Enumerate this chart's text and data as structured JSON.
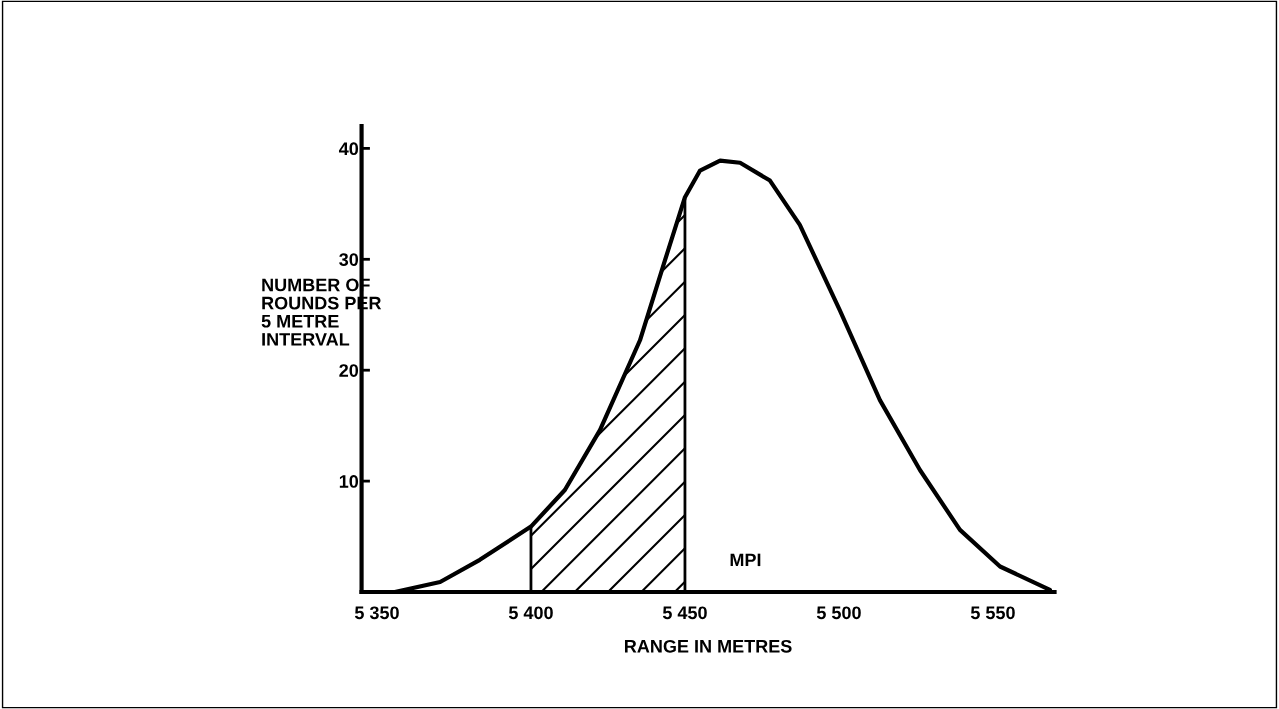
{
  "chart_data": {
    "type": "line",
    "xlabel": "RANGE IN METRES",
    "ylabel": "NUMBER OF\nROUNDS PER\n5 METRE\nINTERVAL",
    "xlim": [
      5345,
      5570
    ],
    "ylim": [
      0,
      42
    ],
    "xticks": [
      {
        "value": 5350,
        "label": "5 350"
      },
      {
        "value": 5400,
        "label": "5 400"
      },
      {
        "value": 5450,
        "label": "5 450"
      },
      {
        "value": 5500,
        "label": "5 500"
      },
      {
        "value": 5550,
        "label": "5 550"
      }
    ],
    "yticks": [
      10,
      20,
      30,
      40
    ],
    "series": [
      {
        "color": "#000000",
        "x": [
          5355.8,
          5370.5,
          5383.4,
          5400,
          5411,
          5422.4,
          5435.4,
          5443.5,
          5450,
          5454.9,
          5461.4,
          5467.9,
          5477.6,
          5487.3,
          5500.3,
          5513.3,
          5526.3,
          5539.3,
          5552.3,
          5568.5
        ],
        "values": [
          0,
          0.9,
          2.9,
          5.9,
          9.2,
          14.6,
          22.7,
          29.9,
          35.6,
          38.0,
          38.9,
          38.7,
          37.1,
          33.1,
          25.4,
          17.3,
          11.0,
          5.6,
          2.3,
          0.2
        ]
      },
      {
        "type": "area",
        "color": "#000000",
        "x": [
          5400,
          5411,
          5422.4,
          5435.4,
          5443.5,
          5450
        ],
        "values": [
          5.9,
          9.2,
          14.6,
          22.7,
          29.9,
          35.6
        ]
      }
    ],
    "annotations": [
      {
        "text": "MPI",
        "x": 5450,
        "y": 2
      }
    ],
    "grid": false,
    "legend": false
  }
}
